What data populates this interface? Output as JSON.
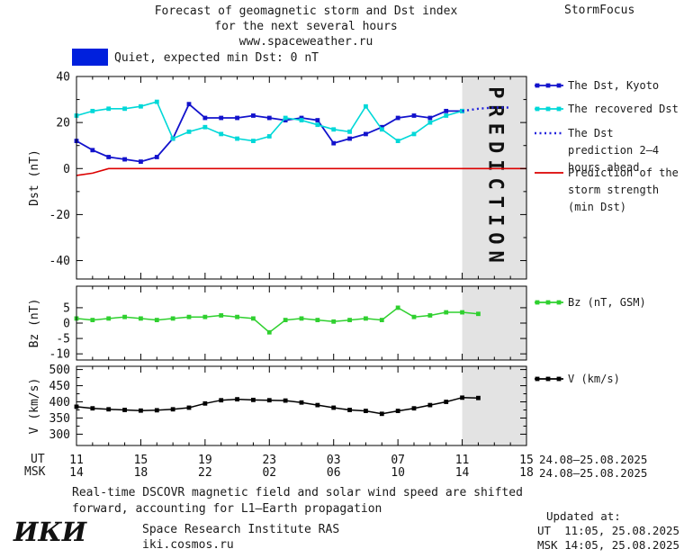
{
  "header": {
    "title_line1": "Forecast of geomagnetic storm and Dst index",
    "title_line2": "for the next several hours",
    "title_line3": "www.spaceweather.ru",
    "brand": "StormFocus"
  },
  "status": {
    "box_color": "#0020dd",
    "label": "Quiet, expected min Dst: 0 nT"
  },
  "legend": [
    {
      "label": "The Dst, Kyoto",
      "color": "#1212cc",
      "style": "solid",
      "marker": "square"
    },
    {
      "label": "The recovered Dst",
      "color": "#00d8d8",
      "style": "solid",
      "marker": "square"
    },
    {
      "label": "The Dst prediction 2—4 hours ahead",
      "color": "#2222dd",
      "style": "dotted",
      "marker": "none"
    },
    {
      "label": "Prediction of the storm strength (min Dst)",
      "color": "#dc0000",
      "style": "solid",
      "marker": "none"
    },
    {
      "label": "Bz (nT, GSM)",
      "color": "#2fd02f",
      "style": "solid",
      "marker": "square"
    },
    {
      "label": "V (km/s)",
      "color": "#000000",
      "style": "solid",
      "marker": "square"
    }
  ],
  "chart_data": {
    "type": "line",
    "title": "Forecast of geomagnetic storm and Dst index for the next several hours",
    "x_axis": {
      "unit": "hours",
      "min": 0,
      "max": 28,
      "tick_hours": [
        0,
        4,
        8,
        12,
        16,
        20,
        24,
        28
      ],
      "ut_prefix": "UT",
      "msk_prefix": "MSK",
      "ut_labels": [
        "11",
        "15",
        "19",
        "23",
        "03",
        "07",
        "11",
        "15"
      ],
      "msk_labels": [
        "14",
        "18",
        "22",
        "02",
        "06",
        "10",
        "14",
        "18"
      ],
      "ut_date_range": "24.08–25.08.2025",
      "msk_date_range": "24.08–25.08.2025"
    },
    "prediction_band": {
      "start_hour": 24,
      "end_hour": 28,
      "label": "PREDICTION",
      "fill": "#e3e3e3",
      "label_color": "#c6c6c6"
    },
    "panels": [
      {
        "id": "dst",
        "ylabel": "Dst (nT)",
        "ylim": [
          -48,
          40
        ],
        "yticks": [
          40,
          20,
          0,
          -20,
          -40
        ],
        "yminor": [
          30,
          10,
          -10,
          -30
        ],
        "series": [
          {
            "name": "The Dst, Kyoto",
            "color": "#1212cc",
            "marker": "square",
            "width": 1.8,
            "x": [
              0,
              1,
              2,
              3,
              4,
              5,
              6,
              7,
              8,
              9,
              10,
              11,
              12,
              13,
              14,
              15,
              16,
              17,
              18,
              19,
              20,
              21,
              22,
              23,
              24
            ],
            "y": [
              12,
              8,
              5,
              4,
              3,
              5,
              13,
              28,
              22,
              22,
              22,
              23,
              22,
              21,
              22,
              21,
              11,
              13,
              15,
              18,
              22,
              23,
              22,
              25,
              25
            ]
          },
          {
            "name": "The recovered Dst",
            "color": "#00d8d8",
            "marker": "square",
            "width": 1.6,
            "x": [
              0,
              1,
              2,
              3,
              4,
              5,
              6,
              7,
              8,
              9,
              10,
              11,
              12,
              13,
              14,
              15,
              16,
              17,
              18,
              19,
              20,
              21,
              22,
              23,
              24
            ],
            "y": [
              23,
              25,
              26,
              26,
              27,
              29,
              13,
              16,
              18,
              15,
              13,
              12,
              14,
              22,
              21,
              19,
              17,
              16,
              27,
              17,
              12,
              15,
              20,
              23,
              25
            ]
          },
          {
            "name": "The Dst prediction 2—4 hours ahead",
            "color": "#2222dd",
            "style": "dotted",
            "width": 2.4,
            "x": [
              24,
              25,
              26,
              27
            ],
            "y": [
              25,
              26,
              26.5,
              26.5
            ]
          },
          {
            "name": "Prediction of the storm strength (min Dst)",
            "color": "#dc0000",
            "width": 1.6,
            "x": [
              0,
              1,
              2,
              28
            ],
            "y": [
              -3,
              -2,
              0,
              0
            ]
          }
        ]
      },
      {
        "id": "bz",
        "ylabel": "Bz (nT)",
        "ylim": [
          -12,
          12
        ],
        "yticks": [
          5,
          0,
          -5,
          -10
        ],
        "yminor": [],
        "series": [
          {
            "name": "Bz (nT, GSM)",
            "color": "#2fd02f",
            "marker": "square",
            "width": 1.5,
            "x": [
              0,
              1,
              2,
              3,
              4,
              5,
              6,
              7,
              8,
              9,
              10,
              11,
              12,
              13,
              14,
              15,
              16,
              17,
              18,
              19,
              20,
              21,
              22,
              23,
              24,
              25
            ],
            "y": [
              1.5,
              1,
              1.5,
              2,
              1.5,
              1,
              1.5,
              2,
              2,
              2.5,
              2,
              1.5,
              -3,
              1,
              1.5,
              1,
              0.5,
              1,
              1.5,
              1,
              5,
              2,
              2.5,
              3.5,
              3.5,
              3
            ]
          }
        ]
      },
      {
        "id": "v",
        "ylabel": "V (km/s)",
        "ylim": [
          265,
          510
        ],
        "yticks": [
          500,
          450,
          400,
          350,
          300
        ],
        "yminor": [
          475,
          425,
          375,
          325
        ],
        "series": [
          {
            "name": "V (km/s)",
            "color": "#000000",
            "marker": "square",
            "width": 1.5,
            "x": [
              0,
              1,
              2,
              3,
              4,
              5,
              6,
              7,
              8,
              9,
              10,
              11,
              12,
              13,
              14,
              15,
              16,
              17,
              18,
              19,
              20,
              21,
              22,
              23,
              24,
              25
            ],
            "y": [
              385,
              380,
              377,
              375,
              373,
              374,
              377,
              382,
              395,
              405,
              408,
              406,
              405,
              404,
              398,
              390,
              382,
              375,
              372,
              363,
              372,
              380,
              390,
              400,
              413,
              412
            ]
          }
        ]
      }
    ]
  },
  "footer": {
    "caption_line1": "Real-time DSCOVR magnetic field and solar wind speed are shifted",
    "caption_line2": "forward, accounting for L1–Earth propagation"
  },
  "updated": {
    "heading": "Updated at:",
    "ut": "UT  11:05, 25.08.2025",
    "msk": "MSK 14:05, 25.08.2025"
  },
  "institute": {
    "logo": "ИКИ",
    "name": "Space Research Institute RAS",
    "site": "iki.cosmos.ru"
  }
}
